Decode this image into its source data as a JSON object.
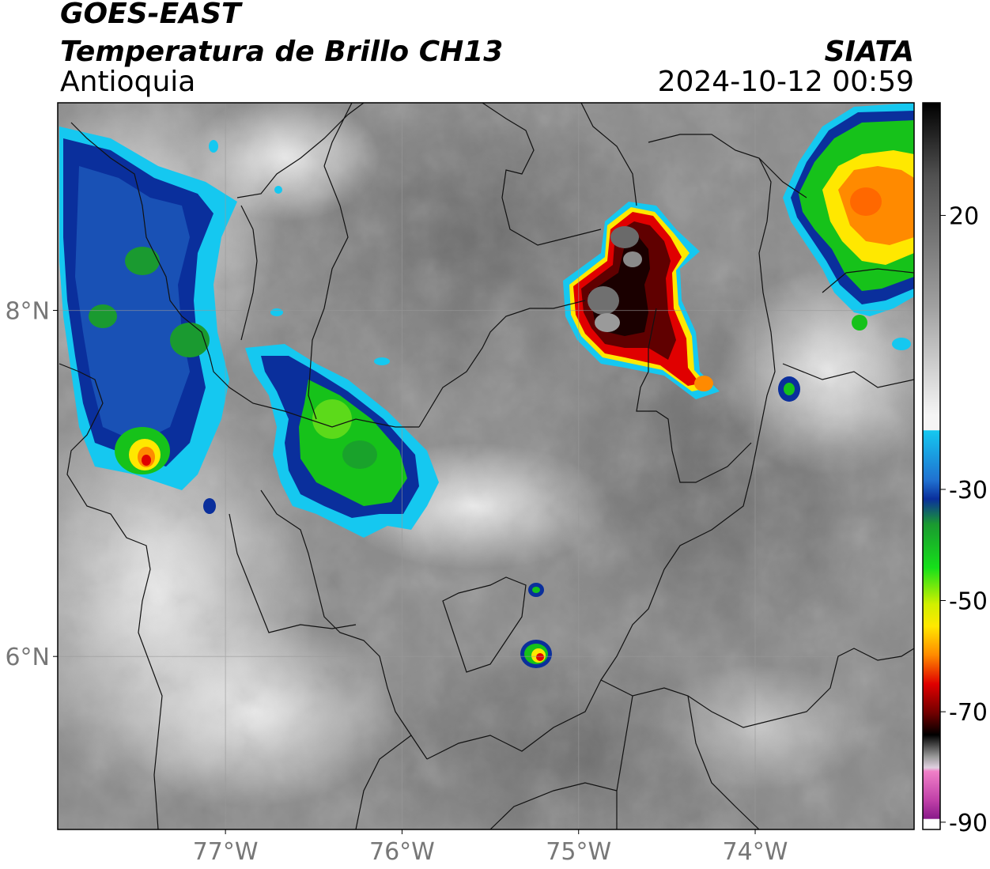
{
  "header": {
    "satellite": "GOES-EAST",
    "product": "Temperatura de Brillo CH13",
    "region": "Antioquia",
    "source": "SIATA",
    "datetime": "2024-10-12 00:59"
  },
  "map": {
    "lon_range": [
      -77.95,
      -73.1
    ],
    "lat_range": [
      5.0,
      9.2
    ],
    "lon_ticks": [
      {
        "value": -77,
        "label": "77°W"
      },
      {
        "value": -76,
        "label": "76°W"
      },
      {
        "value": -75,
        "label": "75°W"
      },
      {
        "value": -74,
        "label": "74°W"
      }
    ],
    "lat_ticks": [
      {
        "value": 8,
        "label": "8°N"
      },
      {
        "value": 6,
        "label": "6°N"
      }
    ],
    "gridlines": true
  },
  "colorbar": {
    "ticks": [
      {
        "value": 20,
        "label": "20"
      },
      {
        "value": -30,
        "label": "-30"
      },
      {
        "value": -50,
        "label": "-50"
      },
      {
        "value": -70,
        "label": "-70"
      },
      {
        "value": -90,
        "label": "-90"
      }
    ],
    "colors": {
      "warm_gray": "#7a7a7a",
      "white": "#ffffff",
      "cyan": "#15c8f0",
      "blue": "#0a2f9c",
      "green": "#16c21a",
      "yellow": "#ffe800",
      "orange": "#ff8a00",
      "red": "#e00000",
      "darkred": "#600000",
      "black": "#000000",
      "pink": "#e060c0",
      "purple": "#8a1a8a"
    }
  },
  "clouds": [
    {
      "name": "convective-cell-east",
      "lon": -74.75,
      "lat": 7.95,
      "min_temp": -75
    },
    {
      "name": "convective-system-northeast",
      "lon": -73.4,
      "lat": 8.65,
      "min_temp": -55
    },
    {
      "name": "convective-cloud-center",
      "lon": -76.2,
      "lat": 7.4,
      "min_temp": -45
    },
    {
      "name": "convective-cloud-west",
      "lon": -77.5,
      "lat": 7.25,
      "min_temp": -60
    },
    {
      "name": "small-cell-south",
      "lon": -75.15,
      "lat": 6.05,
      "min_temp": -62
    }
  ]
}
